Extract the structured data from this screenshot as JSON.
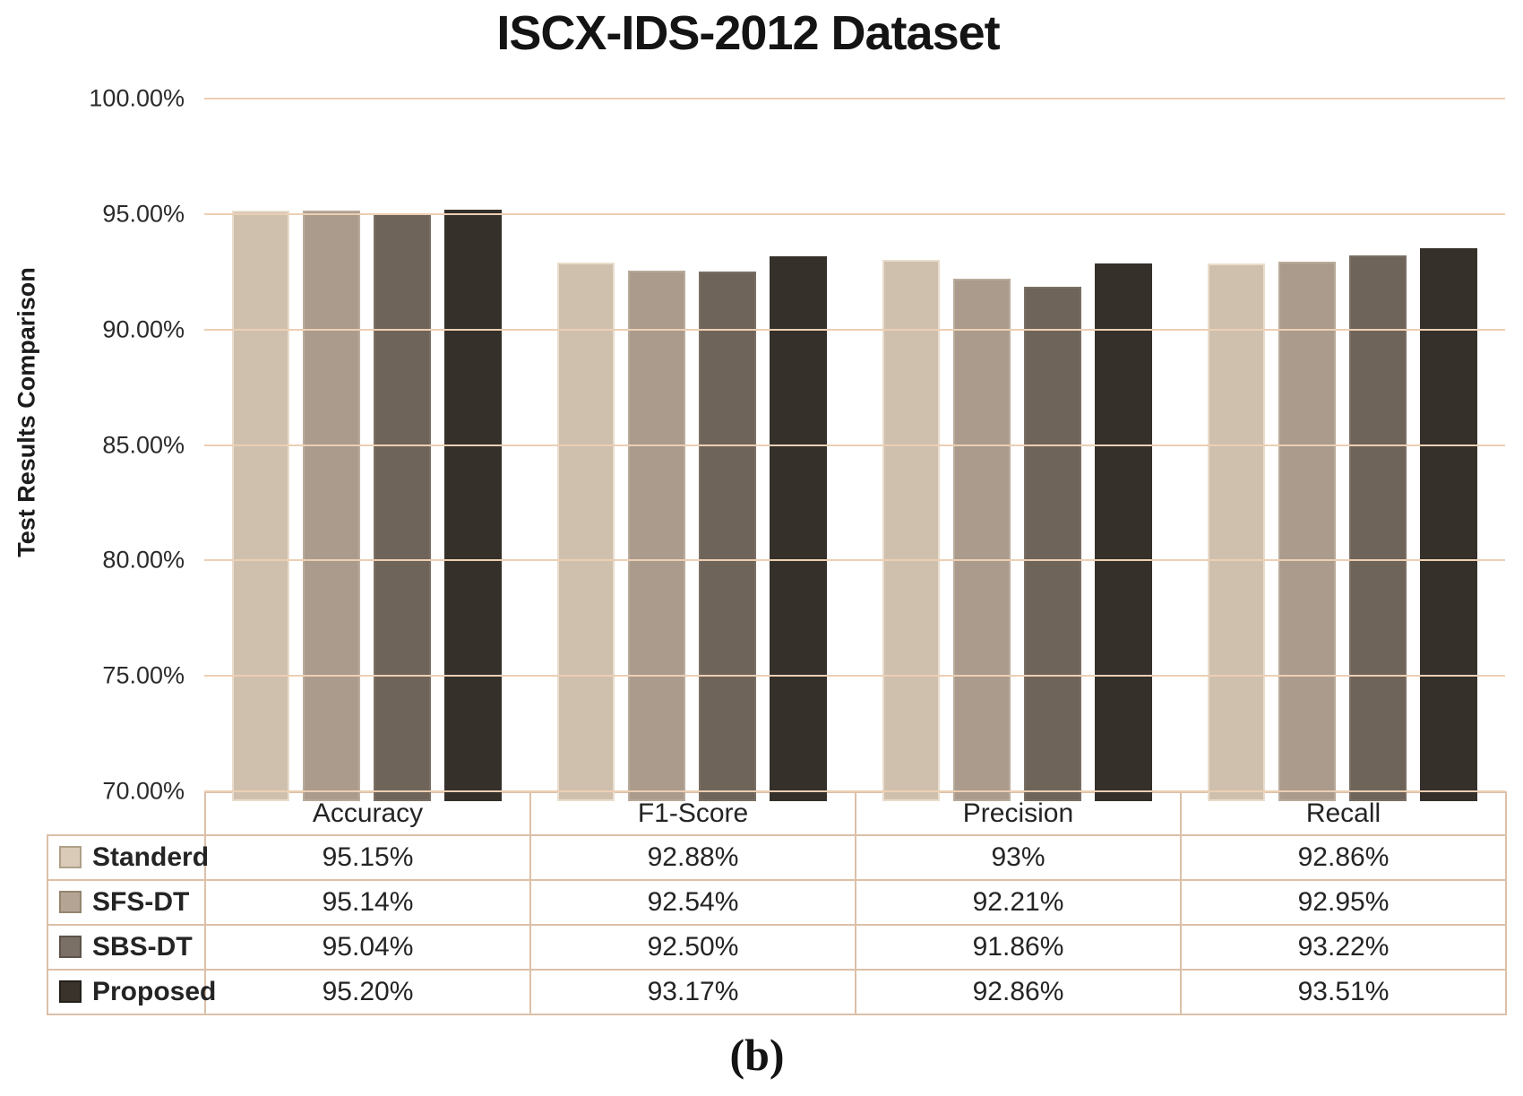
{
  "caption": "(b)",
  "chart_data": {
    "type": "bar",
    "title": "ISCX-IDS-2012 Dataset",
    "ylabel": "Test Results Comparison",
    "ylim": [
      70,
      100
    ],
    "ytick_step": 5,
    "ytick_labels": [
      "100.00%",
      "95.00%",
      "90.00%",
      "85.00%",
      "80.00%",
      "75.00%",
      "70.00%"
    ],
    "grid": true,
    "legend_position": "table-left-column",
    "categories": [
      "Accuracy",
      "F1-Score",
      "Precision",
      "Recall"
    ],
    "series": [
      {
        "name": "Standerd",
        "fill": "#cfc0ae",
        "edge": "#e9ddcd",
        "swatch_fill": "#d9cbb8",
        "swatch_border": "#b0a089",
        "values": [
          95.15,
          92.88,
          93,
          92.86
        ],
        "labels": [
          "95.15%",
          "92.88%",
          "93%",
          "92.86%"
        ]
      },
      {
        "name": "SFS-DT",
        "fill": "#aa9b8c",
        "edge": "#b9ab9c",
        "swatch_fill": "#b3a493",
        "swatch_border": "#94866f",
        "values": [
          95.14,
          92.54,
          92.21,
          92.95
        ],
        "labels": [
          "95.14%",
          "92.54%",
          "92.21%",
          "92.95%"
        ]
      },
      {
        "name": "SBS-DT",
        "fill": "#6f6459",
        "edge": "#7a6f64",
        "swatch_fill": "#7b7065",
        "swatch_border": "#5d5349",
        "values": [
          95.04,
          92.5,
          91.86,
          93.22
        ],
        "labels": [
          "95.04%",
          "92.50%",
          "91.86%",
          "93.22%"
        ]
      },
      {
        "name": "Proposed",
        "fill": "#35302a",
        "edge": "#35302a",
        "swatch_fill": "#3a332c",
        "swatch_border": "#23201b",
        "values": [
          95.2,
          93.17,
          92.86,
          93.51
        ],
        "labels": [
          "95.20%",
          "93.17%",
          "92.86%",
          "93.51%"
        ]
      }
    ],
    "colors": {
      "gridline": "#eccfb4",
      "table_border": "#dcc0a8",
      "title_text": "#141414",
      "body_text": "#262626"
    }
  }
}
